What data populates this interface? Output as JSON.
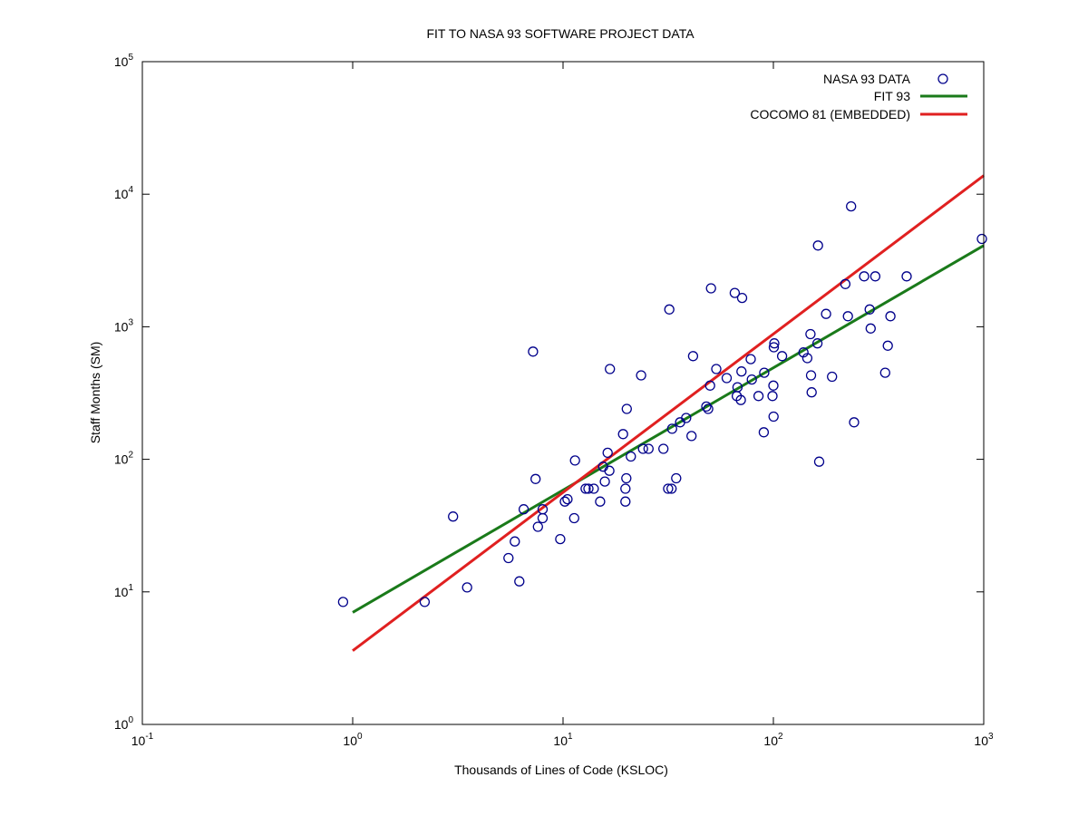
{
  "chart_data": {
    "type": "scatter",
    "title": "FIT TO NASA 93 SOFTWARE PROJECT DATA",
    "xlabel": "Thousands of Lines of Code (KSLOC)",
    "ylabel": "Staff Months (SM)",
    "x_scale": "log",
    "y_scale": "log",
    "xlim": [
      0.1,
      1000
    ],
    "ylim": [
      1,
      100000
    ],
    "grid": false,
    "legend_position": "top-right",
    "x_ticks": [
      {
        "base": "10",
        "exp": "-1",
        "value": 0.1
      },
      {
        "base": "10",
        "exp": "0",
        "value": 1
      },
      {
        "base": "10",
        "exp": "1",
        "value": 10
      },
      {
        "base": "10",
        "exp": "2",
        "value": 100
      },
      {
        "base": "10",
        "exp": "3",
        "value": 1000
      }
    ],
    "y_ticks": [
      {
        "base": "10",
        "exp": "0",
        "value": 1
      },
      {
        "base": "10",
        "exp": "1",
        "value": 10
      },
      {
        "base": "10",
        "exp": "2",
        "value": 100
      },
      {
        "base": "10",
        "exp": "3",
        "value": 1000
      },
      {
        "base": "10",
        "exp": "4",
        "value": 10000
      },
      {
        "base": "10",
        "exp": "5",
        "value": 100000
      }
    ],
    "series": [
      {
        "name": "NASA 93 DATA",
        "kind": "scatter",
        "marker": "open-circle",
        "color": "#00008b",
        "points": [
          [
            0.9,
            8.4
          ],
          [
            2.2,
            8.4
          ],
          [
            3,
            37
          ],
          [
            3.5,
            10.8
          ],
          [
            5.5,
            18
          ],
          [
            5.9,
            24
          ],
          [
            6.2,
            12
          ],
          [
            6.5,
            42
          ],
          [
            7.2,
            650
          ],
          [
            7.4,
            71
          ],
          [
            7.6,
            31
          ],
          [
            8,
            36
          ],
          [
            8,
            42
          ],
          [
            9.7,
            25
          ],
          [
            10.2,
            48
          ],
          [
            10.5,
            50
          ],
          [
            11.3,
            36
          ],
          [
            11.4,
            98
          ],
          [
            12.8,
            60
          ],
          [
            13.2,
            60
          ],
          [
            14,
            60
          ],
          [
            15,
            48
          ],
          [
            15.5,
            88
          ],
          [
            15.8,
            68
          ],
          [
            16.3,
            112
          ],
          [
            16.6,
            82
          ],
          [
            16.7,
            480
          ],
          [
            19.3,
            155
          ],
          [
            19.8,
            48
          ],
          [
            19.8,
            60
          ],
          [
            20,
            72
          ],
          [
            20.1,
            240
          ],
          [
            21,
            105
          ],
          [
            23.5,
            430
          ],
          [
            24,
            120
          ],
          [
            25.5,
            120
          ],
          [
            30,
            120
          ],
          [
            31.6,
            60
          ],
          [
            32,
            1350
          ],
          [
            32.8,
            60
          ],
          [
            33,
            170
          ],
          [
            34.5,
            72
          ],
          [
            36,
            190
          ],
          [
            38.5,
            205
          ],
          [
            40.8,
            150
          ],
          [
            41.5,
            600
          ],
          [
            48,
            250
          ],
          [
            49,
            240
          ],
          [
            50,
            360
          ],
          [
            50.5,
            1950
          ],
          [
            53.5,
            480
          ],
          [
            60,
            410
          ],
          [
            65.5,
            1800
          ],
          [
            67,
            300
          ],
          [
            67.5,
            350
          ],
          [
            70,
            280
          ],
          [
            70.5,
            460
          ],
          [
            71,
            1650
          ],
          [
            78,
            570
          ],
          [
            79,
            400
          ],
          [
            85,
            300
          ],
          [
            90,
            160
          ],
          [
            90.5,
            450
          ],
          [
            99,
            300
          ],
          [
            100,
            360
          ],
          [
            100.2,
            210
          ],
          [
            100.5,
            700
          ],
          [
            101,
            750
          ],
          [
            110,
            600
          ],
          [
            139,
            640
          ],
          [
            145,
            580
          ],
          [
            150,
            880
          ],
          [
            151,
            430
          ],
          [
            152,
            320
          ],
          [
            162,
            750
          ],
          [
            163,
            4100
          ],
          [
            165,
            96
          ],
          [
            178,
            1250
          ],
          [
            190,
            420
          ],
          [
            220,
            2100
          ],
          [
            226,
            1200
          ],
          [
            234,
            8100
          ],
          [
            242,
            190
          ],
          [
            270,
            2400
          ],
          [
            287,
            1350
          ],
          [
            290,
            970
          ],
          [
            305,
            2400
          ],
          [
            340,
            450
          ],
          [
            350,
            720
          ],
          [
            360,
            1200
          ],
          [
            430,
            2400
          ],
          [
            980,
            4600
          ]
        ]
      },
      {
        "name": "FIT 93",
        "kind": "line",
        "color": "#1a7a1a",
        "x": [
          1,
          1000
        ],
        "y": [
          7,
          4100
        ]
      },
      {
        "name": "COCOMO 81 (EMBEDDED)",
        "kind": "line",
        "color": "#e02020",
        "x": [
          1,
          1000
        ],
        "y": [
          3.6,
          13800
        ]
      }
    ]
  }
}
